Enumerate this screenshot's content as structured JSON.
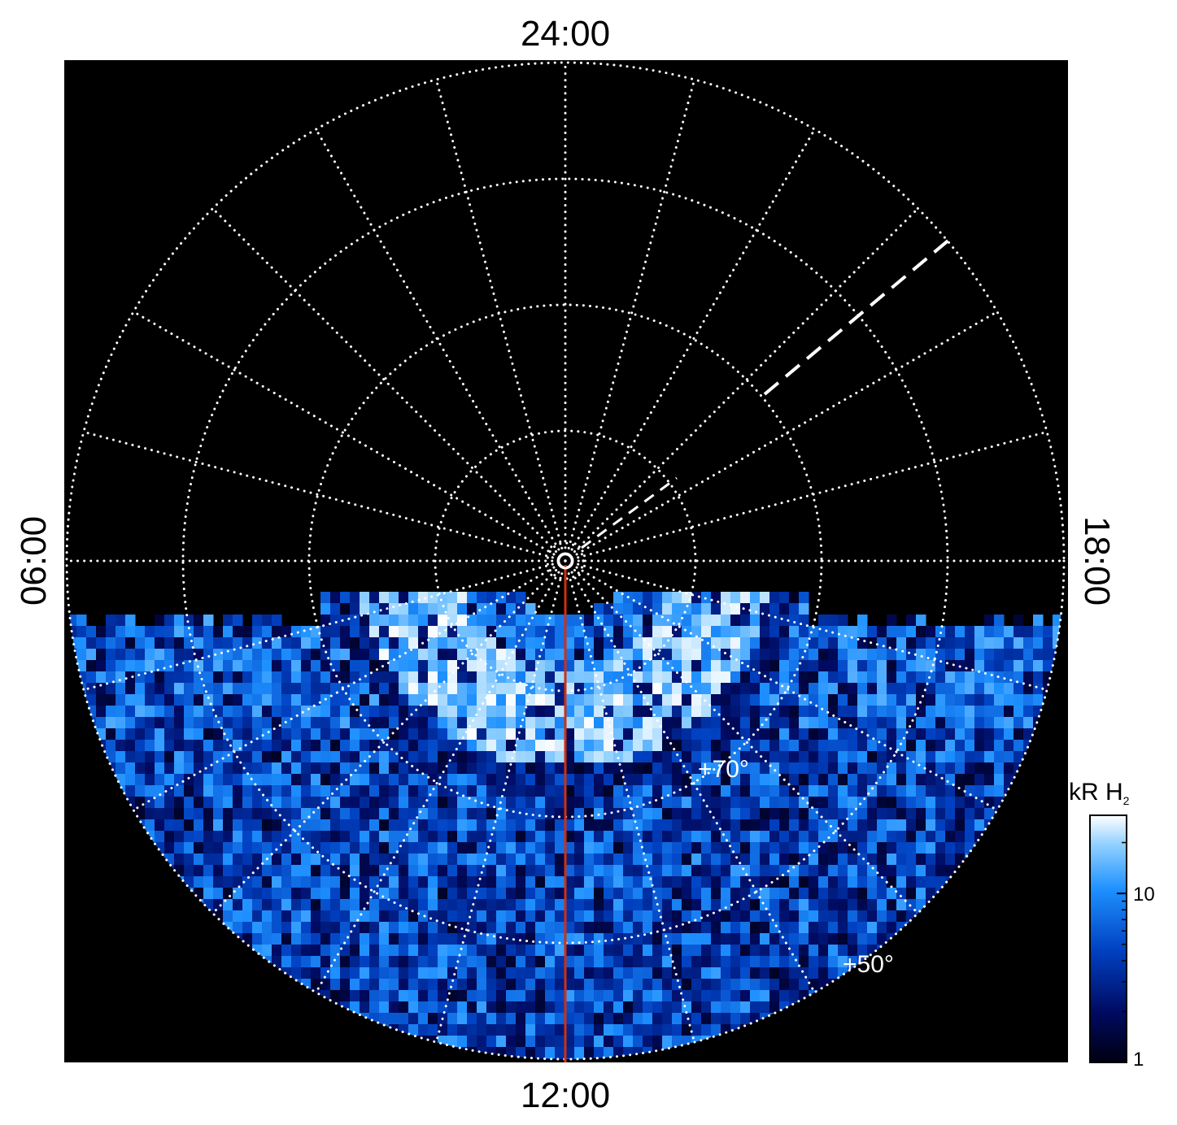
{
  "labels": {
    "top": "24:00",
    "left": "06:00",
    "bottom": "12:00",
    "right": "18:00"
  },
  "latitude_labels": [
    "+70°",
    "+50°"
  ],
  "colorbar": {
    "title": "kR H",
    "title_subscript": "2",
    "scale": "log",
    "lim": [
      1,
      29
    ],
    "ticks": [
      1,
      10
    ],
    "minor_ticks": [
      2,
      3,
      4,
      5,
      6,
      7,
      8,
      9,
      20
    ]
  }
}
